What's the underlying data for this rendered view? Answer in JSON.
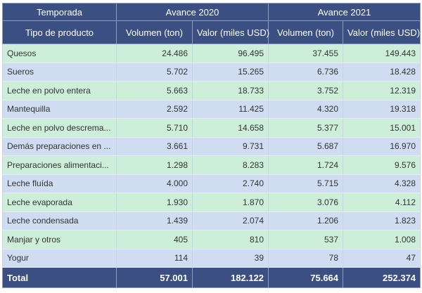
{
  "header": {
    "temporada_label": "Temporada",
    "season_2020": "Avance 2020",
    "season_2021": "Avance 2021",
    "product_col": "Tipo de producto",
    "vol_2020": "Volumen (ton)",
    "val_2020": "Valor (miles USD)",
    "vol_2021": "Volumen (ton)",
    "val_2021": "Valor (miles USD)"
  },
  "rows": [
    {
      "product": "Quesos",
      "v2020": "24.486",
      "usd2020": "96.495",
      "v2021": "37.455",
      "usd2021": "149.443"
    },
    {
      "product": "Sueros",
      "v2020": "5.702",
      "usd2020": "15.265",
      "v2021": "6.736",
      "usd2021": "18.428"
    },
    {
      "product": "Leche en polvo entera",
      "v2020": "5.663",
      "usd2020": "18.733",
      "v2021": "3.752",
      "usd2021": "12.319"
    },
    {
      "product": "Mantequilla",
      "v2020": "2.592",
      "usd2020": "11.425",
      "v2021": "4.320",
      "usd2021": "19.318"
    },
    {
      "product": "Leche en polvo descrema...",
      "v2020": "5.710",
      "usd2020": "14.658",
      "v2021": "5.377",
      "usd2021": "15.001"
    },
    {
      "product": "Demás preparaciones en ...",
      "v2020": "3.661",
      "usd2020": "9.731",
      "v2021": "5.687",
      "usd2021": "16.970"
    },
    {
      "product": "Preparaciones alimentaci...",
      "v2020": "1.298",
      "usd2020": "8.283",
      "v2021": "1.724",
      "usd2021": "9.576"
    },
    {
      "product": "Leche fluída",
      "v2020": "4.000",
      "usd2020": "2.740",
      "v2021": "5.715",
      "usd2021": "4.328"
    },
    {
      "product": "Leche evaporada",
      "v2020": "1.930",
      "usd2020": "1.870",
      "v2021": "3.076",
      "usd2021": "4.112"
    },
    {
      "product": "Leche condensada",
      "v2020": "1.439",
      "usd2020": "2.074",
      "v2021": "1.206",
      "usd2021": "1.823"
    },
    {
      "product": "Manjar y otros",
      "v2020": "405",
      "usd2020": "810",
      "v2021": "537",
      "usd2021": "1.008"
    },
    {
      "product": "Yogur",
      "v2020": "114",
      "usd2020": "39",
      "v2021": "78",
      "usd2021": "47"
    }
  ],
  "total": {
    "label": "Total",
    "v2020": "57.001",
    "usd2020": "182.122",
    "v2021": "75.664",
    "usd2021": "252.374"
  },
  "colors": {
    "header_bg": "#3b4f82",
    "row_green": "#cdeed9",
    "row_blue": "#cfdcf2"
  }
}
